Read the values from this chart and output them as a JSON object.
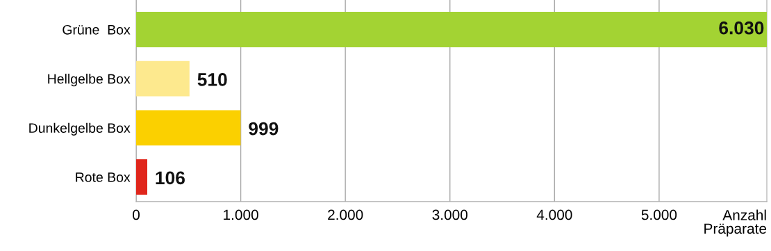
{
  "chart_data": {
    "type": "bar",
    "orientation": "horizontal",
    "categories": [
      "Grüne  Box",
      "Hellgelbe Box",
      "Dunkelgelbe Box",
      "Rote Box"
    ],
    "values": [
      6030,
      510,
      999,
      106
    ],
    "colors": [
      "#a3d333",
      "#fde98e",
      "#fbd000",
      "#e0261c"
    ],
    "value_labels": [
      "6.030",
      "510",
      "999",
      "106"
    ],
    "xlabel": "Anzahl\nPräparate",
    "xlim": [
      0,
      6030
    ],
    "xticks": [
      0,
      {
        "value": 1000,
        "label": "1.000"
      },
      {
        "value": 2000,
        "label": "2.000"
      },
      {
        "value": 3000,
        "label": "3.000"
      },
      {
        "value": 4000,
        "label": "4.000"
      },
      {
        "value": 5000,
        "label": "5.000"
      }
    ],
    "grid": "x",
    "legend": false
  }
}
